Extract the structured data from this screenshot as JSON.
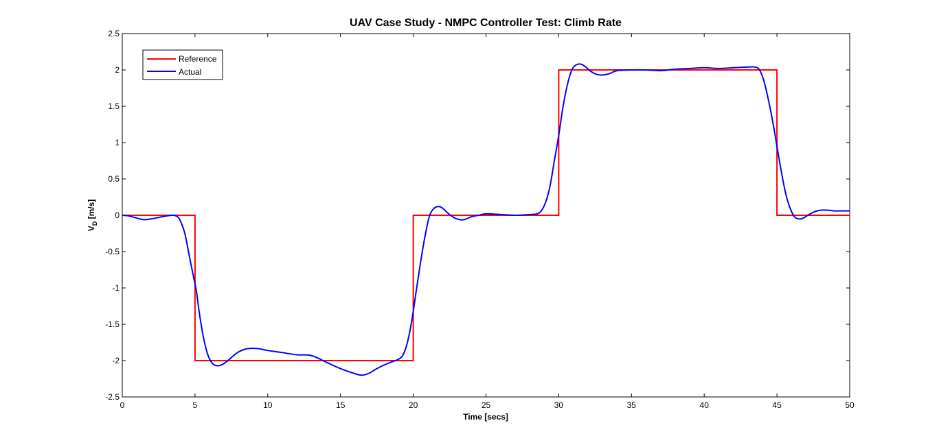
{
  "chart_data": {
    "type": "line",
    "title": "UAV Case Study - NMPC Controller Test: Climb Rate",
    "xlabel": "Time [secs]",
    "ylabel_main": "V",
    "ylabel_sub": "D",
    "ylabel_rest": " [m/s]",
    "xlim": [
      0,
      50
    ],
    "ylim": [
      -2.5,
      2.5
    ],
    "xticks": [
      0,
      5,
      10,
      15,
      20,
      25,
      30,
      35,
      40,
      45,
      50
    ],
    "xtick_labels": [
      "0",
      "5",
      "10",
      "15",
      "20",
      "25",
      "30",
      "35",
      "40",
      "45",
      "50"
    ],
    "yticks": [
      -2.5,
      -2,
      -1.5,
      -1,
      -0.5,
      0,
      0.5,
      1,
      1.5,
      2,
      2.5
    ],
    "ytick_labels": [
      "-2.5",
      "-2",
      "-1.5",
      "-1",
      "-0.5",
      "0",
      "0.5",
      "1",
      "1.5",
      "2",
      "2.5"
    ],
    "grid": false,
    "legend_position": "top-left",
    "series": [
      {
        "name": "Reference",
        "color": "#ff0000",
        "x": [
          0,
          5,
          5,
          20,
          20,
          30,
          30,
          45,
          45,
          50
        ],
        "y": [
          0,
          0,
          -2,
          -2,
          0,
          0,
          2,
          2,
          0,
          0
        ]
      },
      {
        "name": "Actual",
        "color": "#0000ff",
        "x": [
          0,
          0.5,
          1,
          1.5,
          2,
          2.5,
          3,
          3.5,
          3.8,
          4.0,
          4.3,
          4.6,
          4.9,
          5.1,
          5.3,
          5.6,
          5.9,
          6.2,
          6.5,
          6.8,
          7.2,
          7.6,
          8.0,
          8.5,
          9.0,
          9.5,
          10,
          11,
          12,
          13,
          14,
          15,
          16,
          16.5,
          17,
          17.5,
          18,
          18.5,
          19,
          19.3,
          19.6,
          19.9,
          20.2,
          20.5,
          20.8,
          21.1,
          21.4,
          21.7,
          22,
          22.5,
          23,
          23.5,
          24,
          24.5,
          25,
          26,
          27,
          28,
          28.5,
          28.8,
          29.1,
          29.4,
          29.7,
          30.0,
          30.3,
          30.6,
          30.9,
          31.2,
          31.5,
          31.8,
          32.2,
          32.6,
          33,
          33.5,
          34,
          35,
          36,
          37,
          38,
          39,
          40,
          41,
          42,
          43,
          43.5,
          43.8,
          44.1,
          44.4,
          44.7,
          45.0,
          45.3,
          45.6,
          45.9,
          46.2,
          46.5,
          46.8,
          47.2,
          47.6,
          48,
          48.5,
          49,
          49.5,
          50
        ],
        "y": [
          0,
          -0.01,
          -0.04,
          -0.06,
          -0.05,
          -0.03,
          -0.01,
          0,
          -0.02,
          -0.08,
          -0.25,
          -0.55,
          -0.85,
          -1.05,
          -1.35,
          -1.7,
          -1.93,
          -2.04,
          -2.07,
          -2.06,
          -2.01,
          -1.94,
          -1.88,
          -1.84,
          -1.83,
          -1.84,
          -1.86,
          -1.89,
          -1.92,
          -1.93,
          -2.02,
          -2.11,
          -2.18,
          -2.2,
          -2.17,
          -2.11,
          -2.06,
          -2.02,
          -1.98,
          -1.92,
          -1.75,
          -1.45,
          -1.05,
          -0.65,
          -0.3,
          -0.02,
          0.09,
          0.12,
          0.1,
          0.01,
          -0.05,
          -0.06,
          -0.02,
          0.0,
          0.02,
          0.01,
          0.0,
          0.01,
          0.02,
          0.06,
          0.18,
          0.4,
          0.75,
          1.1,
          1.5,
          1.8,
          2.0,
          2.07,
          2.08,
          2.05,
          1.98,
          1.94,
          1.93,
          1.95,
          1.99,
          2.0,
          2.0,
          1.99,
          2.01,
          2.02,
          2.03,
          2.02,
          2.03,
          2.04,
          2.04,
          2.0,
          1.85,
          1.6,
          1.3,
          0.95,
          0.6,
          0.3,
          0.1,
          -0.02,
          -0.05,
          -0.04,
          0.01,
          0.05,
          0.07,
          0.07,
          0.06,
          0.06,
          0.06
        ]
      }
    ]
  }
}
